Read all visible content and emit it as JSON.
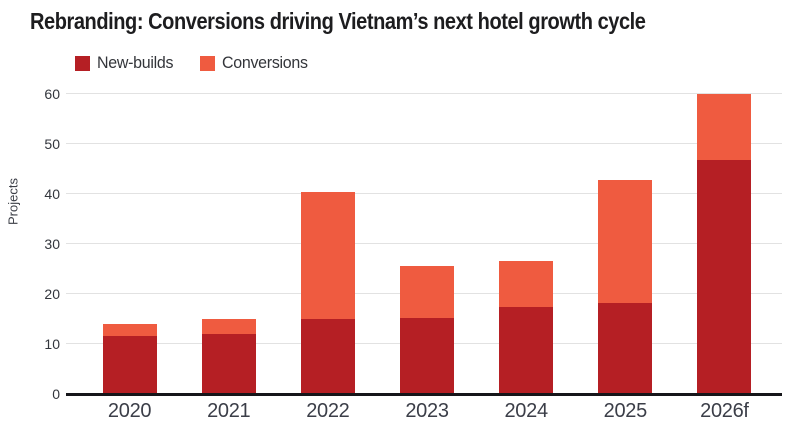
{
  "title": "Rebranding: Conversions driving Vietnam’s next hotel growth cycle",
  "legend": [
    {
      "label": "New-builds",
      "color": "#b51f24"
    },
    {
      "label": "Conversions",
      "color": "#ef5b40"
    }
  ],
  "colors": {
    "new_builds": "#b51f24",
    "conversions": "#ef5b40",
    "gridline": "#e2e2e2",
    "baseline": "#16161a",
    "title_text": "#1d1d1f",
    "axis_text": "#3b3e48"
  },
  "chart_data": {
    "type": "bar",
    "stacked": true,
    "title": "Rebranding: Conversions driving Vietnam’s next hotel growth cycle",
    "xlabel": "",
    "ylabel": "Projects",
    "categories": [
      "2020",
      "2021",
      "2022",
      "2023",
      "2024",
      "2025",
      "2026f"
    ],
    "series": [
      {
        "name": "New-builds",
        "color": "#b51f24",
        "values": [
          11.7,
          12.0,
          15.0,
          15.2,
          17.4,
          18.2,
          46.8
        ]
      },
      {
        "name": "Conversions",
        "color": "#ef5b40",
        "values": [
          2.3,
          3.0,
          25.4,
          10.4,
          9.2,
          24.6,
          13.2
        ]
      }
    ],
    "totals": [
      14.0,
      15.0,
      40.4,
      25.6,
      26.6,
      42.8,
      60.0
    ],
    "ylim": [
      0,
      60
    ],
    "yticks": [
      0,
      10,
      20,
      30,
      40,
      50,
      60
    ],
    "grid": true,
    "legend_position": "top-left"
  }
}
